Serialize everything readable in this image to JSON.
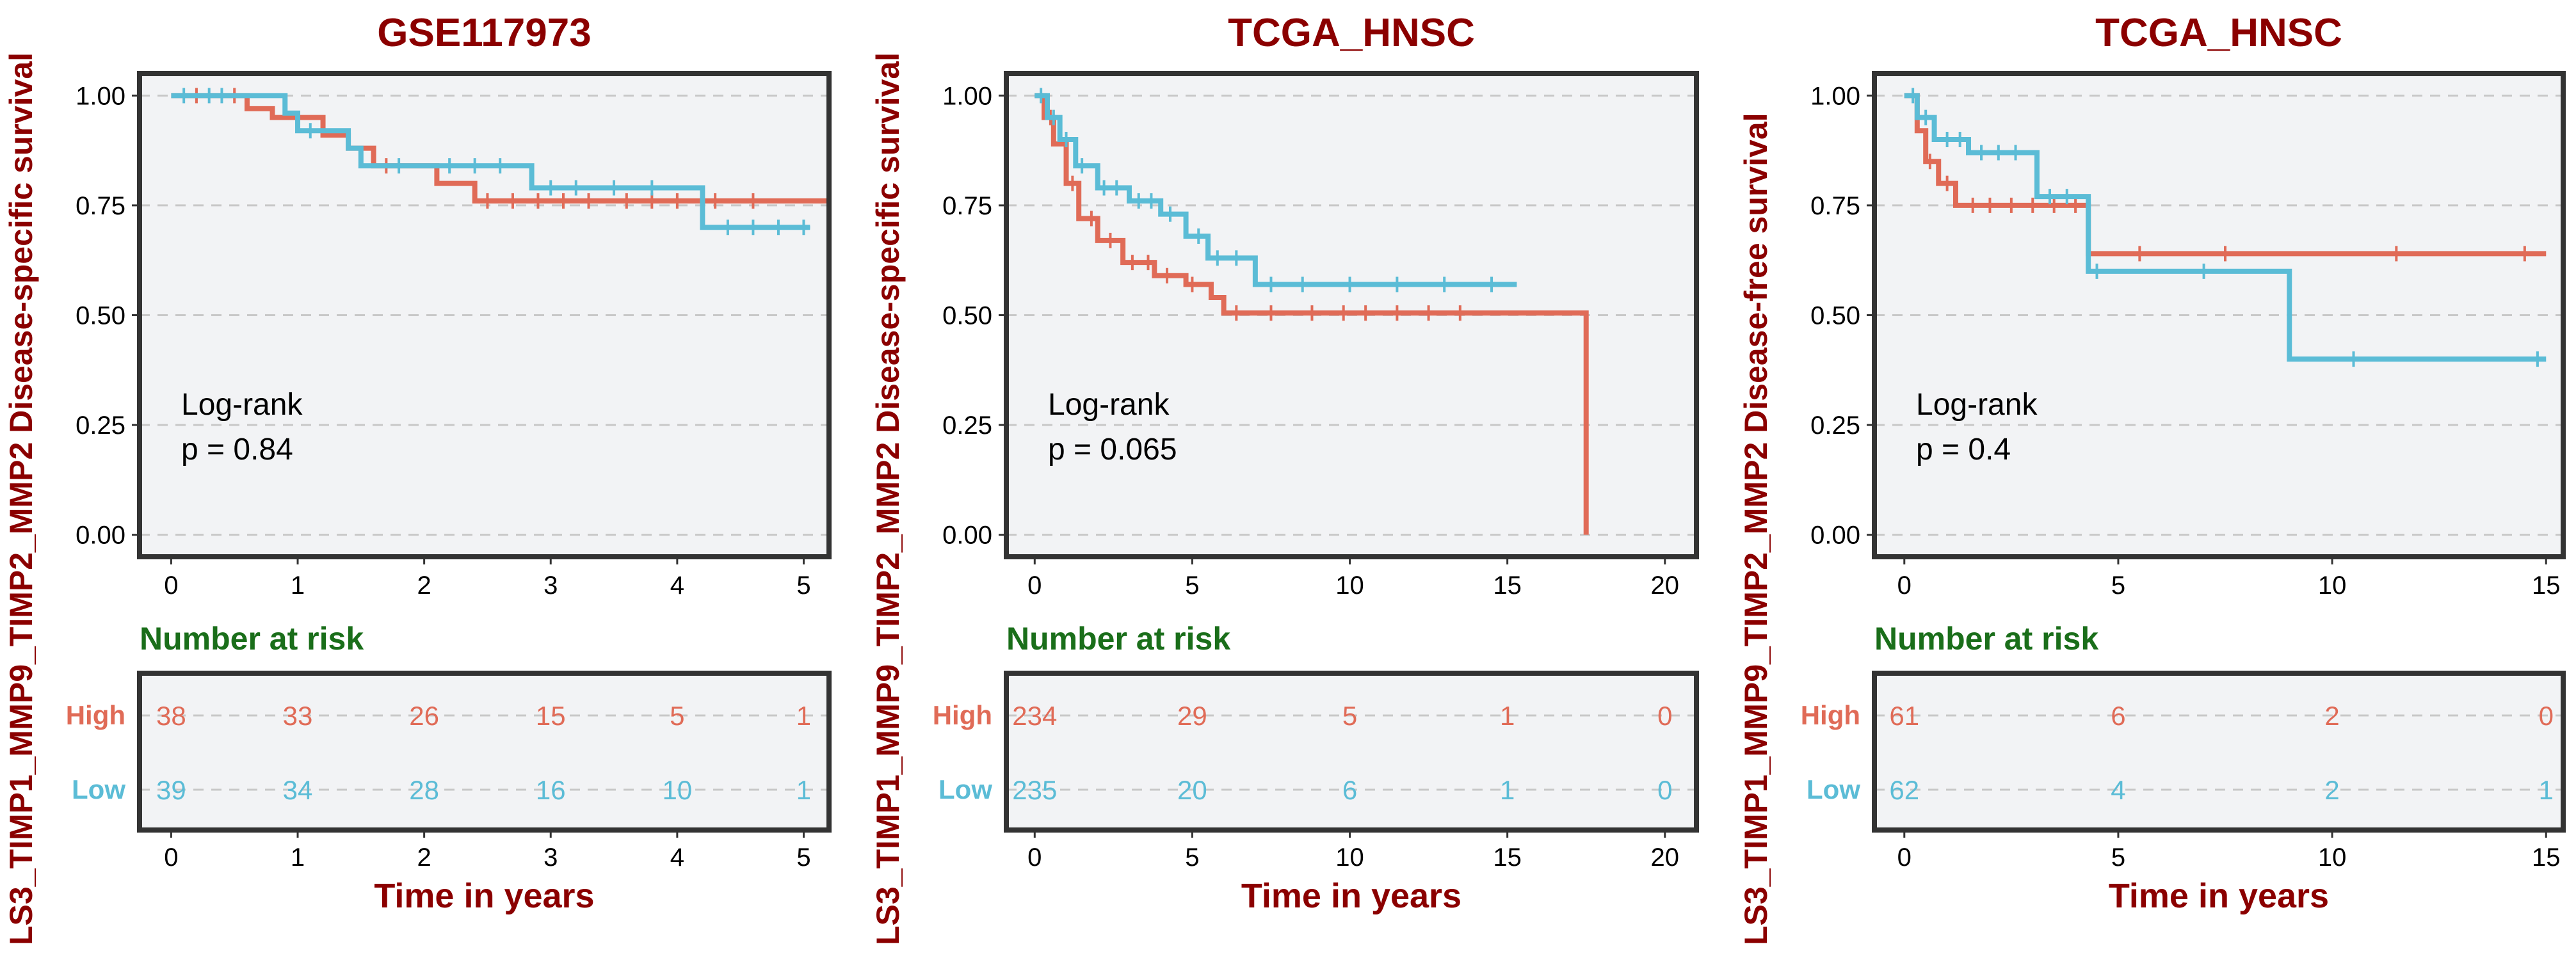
{
  "colors": {
    "title": "#8b0000",
    "high": "#e06b57",
    "low": "#5bbcd6",
    "risk_title": "#1a6e1a",
    "panel_bg": "#f2f3f5",
    "grid": "#c8c8c8",
    "frame": "#333333"
  },
  "chart_data": [
    {
      "type": "line",
      "title": "GSE117973",
      "ylabel": "LS3_TIMP1_MMP9_TIMP2_MMP2 Disease-specific survival",
      "xlabel": "Time in years",
      "xlim": [
        -0.25,
        5.2
      ],
      "ylim": [
        -0.05,
        1.05
      ],
      "xticks": [
        0,
        1,
        2,
        3,
        4,
        5
      ],
      "yticks": [
        "0.00",
        "0.25",
        "0.50",
        "0.75",
        "1.00"
      ],
      "annotation": [
        "Log-rank",
        "p = 0.84"
      ],
      "series": [
        {
          "name": "High",
          "color": "#e06b57",
          "x": [
            0,
            0.6,
            0.8,
            1.2,
            1.4,
            1.6,
            2.1,
            2.4,
            3.5,
            5.2
          ],
          "y": [
            1.0,
            0.97,
            0.95,
            0.91,
            0.88,
            0.84,
            0.8,
            0.76,
            0.76,
            0.76
          ],
          "censor": [
            0.2,
            0.5,
            1.7,
            2.5,
            2.7,
            2.9,
            3.1,
            3.3,
            3.6,
            3.8,
            4.0,
            4.3,
            4.6
          ]
        },
        {
          "name": "Low",
          "color": "#5bbcd6",
          "x": [
            0,
            0.9,
            1.0,
            1.4,
            1.5,
            2.85,
            4.2,
            5.05
          ],
          "y": [
            1.0,
            0.96,
            0.92,
            0.88,
            0.84,
            0.79,
            0.7,
            0.7
          ],
          "censor": [
            0.1,
            0.3,
            0.4,
            1.1,
            1.8,
            2.2,
            2.4,
            2.6,
            3.0,
            3.2,
            3.5,
            3.8,
            4.4,
            4.6,
            4.8,
            5.0
          ]
        }
      ],
      "risk": {
        "title": "Number at risk",
        "xticks": [
          0,
          1,
          2,
          3,
          4,
          5
        ],
        "groups": [
          {
            "name": "High",
            "values": [
              "38",
              "33",
              "26",
              "15",
              "5",
              "1"
            ]
          },
          {
            "name": "Low",
            "values": [
              "39",
              "34",
              "28",
              "16",
              "10",
              "1"
            ]
          }
        ]
      }
    },
    {
      "type": "line",
      "title": "TCGA_HNSC",
      "ylabel": "LS3_TIMP1_MMP9_TIMP2_MMP2 Disease-specific survival",
      "xlabel": "Time in years",
      "xlim": [
        -0.9,
        21.0
      ],
      "ylim": [
        -0.05,
        1.05
      ],
      "xticks": [
        0,
        5,
        10,
        15,
        20
      ],
      "yticks": [
        "0.00",
        "0.25",
        "0.50",
        "0.75",
        "1.00"
      ],
      "annotation": [
        "Log-rank",
        "p = 0.065"
      ],
      "series": [
        {
          "name": "High",
          "color": "#e06b57",
          "x": [
            0,
            0.3,
            0.6,
            1.0,
            1.4,
            2.0,
            2.8,
            3.8,
            4.8,
            5.6,
            6.0,
            17.5,
            17.5
          ],
          "y": [
            1.0,
            0.95,
            0.89,
            0.8,
            0.72,
            0.67,
            0.62,
            0.59,
            0.57,
            0.54,
            0.505,
            0.505,
            0.0
          ],
          "censor": [
            0.5,
            1.2,
            1.8,
            2.4,
            3.1,
            3.6,
            4.2,
            5.0,
            6.4,
            7.5,
            8.8,
            9.8,
            10.5,
            11.5,
            12.5,
            13.5
          ]
        },
        {
          "name": "Low",
          "color": "#5bbcd6",
          "x": [
            0,
            0.4,
            0.8,
            1.3,
            2.0,
            3.0,
            4.0,
            4.8,
            5.5,
            7.0,
            15.3
          ],
          "y": [
            1.0,
            0.95,
            0.9,
            0.84,
            0.79,
            0.76,
            0.73,
            0.68,
            0.63,
            0.57,
            0.57
          ],
          "censor": [
            0.2,
            0.6,
            1.0,
            1.5,
            2.2,
            2.6,
            3.3,
            3.7,
            4.3,
            5.2,
            5.8,
            6.4,
            7.5,
            8.5,
            10.0,
            11.5,
            13.0,
            14.5
          ]
        }
      ],
      "risk": {
        "title": "Number at risk",
        "xticks": [
          0,
          5,
          10,
          15,
          20
        ],
        "groups": [
          {
            "name": "High",
            "values": [
              "234",
              "29",
              "5",
              "1",
              "0"
            ]
          },
          {
            "name": "Low",
            "values": [
              "235",
              "20",
              "6",
              "1",
              "0"
            ]
          }
        ]
      }
    },
    {
      "type": "line",
      "title": "TCGA_HNSC",
      "ylabel": "LS3_TIMP1_MMP9_TIMP2_MMP2 Disease-free survival",
      "xlabel": "Time in years",
      "xlim": [
        -0.7,
        15.4
      ],
      "ylim": [
        -0.05,
        1.05
      ],
      "xticks": [
        0,
        5,
        10,
        15
      ],
      "yticks": [
        "0.00",
        "0.25",
        "0.50",
        "0.75",
        "1.00"
      ],
      "annotation": [
        "Log-rank",
        "p = 0.4"
      ],
      "series": [
        {
          "name": "High",
          "color": "#e06b57",
          "x": [
            0,
            0.3,
            0.5,
            0.8,
            1.2,
            4.3,
            15.0
          ],
          "y": [
            1.0,
            0.92,
            0.85,
            0.8,
            0.75,
            0.64,
            0.64
          ],
          "censor": [
            0.6,
            1.0,
            1.6,
            2.0,
            2.5,
            3.0,
            3.5,
            4.0,
            5.5,
            7.5,
            11.5,
            14.5
          ]
        },
        {
          "name": "Low",
          "color": "#5bbcd6",
          "x": [
            0,
            0.3,
            0.7,
            1.5,
            3.1,
            4.3,
            9.0,
            15.0
          ],
          "y": [
            1.0,
            0.95,
            0.9,
            0.87,
            0.77,
            0.6,
            0.4,
            0.4
          ],
          "censor": [
            0.2,
            0.5,
            1.0,
            1.3,
            1.8,
            2.2,
            2.6,
            3.4,
            3.8,
            4.5,
            7.0,
            10.5,
            14.8
          ]
        }
      ],
      "risk": {
        "title": "Number at risk",
        "xticks": [
          0,
          5,
          10,
          15
        ],
        "groups": [
          {
            "name": "High",
            "values": [
              "61",
              "6",
              "2",
              "0"
            ]
          },
          {
            "name": "Low",
            "values": [
              "62",
              "4",
              "2",
              "1"
            ]
          }
        ]
      }
    }
  ]
}
